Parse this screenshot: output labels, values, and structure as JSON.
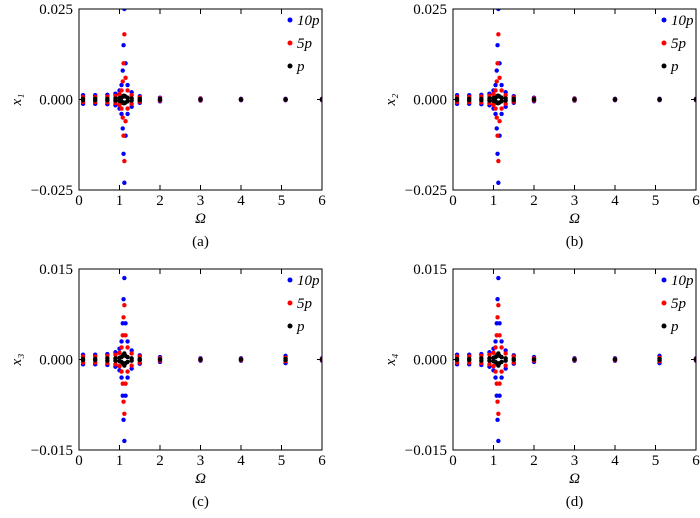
{
  "chart_data": [
    {
      "type": "scatter",
      "ylabel": "x₁",
      "xlabel": "Ω",
      "caption": "(a)",
      "x": [
        0.1,
        0.1,
        0.4,
        0.4,
        0.7,
        0.7,
        0.9,
        0.9,
        1.0,
        1.0,
        1.05,
        1.05,
        1.08,
        1.08,
        1.1,
        1.1,
        1.12,
        1.12,
        1.15,
        1.15,
        1.2,
        1.2,
        1.3,
        1.3,
        1.5,
        1.5,
        2,
        2,
        3,
        3,
        4,
        4,
        5.1,
        5.1,
        6,
        6
      ],
      "xlim": [
        0,
        6
      ],
      "xticks": [
        0,
        1,
        2,
        3,
        4,
        5,
        6
      ],
      "ylim": [
        -0.025,
        0.025
      ],
      "yticks": [
        {
          "value": -0.025,
          "label": "−0.025"
        },
        {
          "value": 0,
          "label": "0.000"
        },
        {
          "value": 0.025,
          "label": "0.025"
        }
      ],
      "series": [
        {
          "name": "10p",
          "color": "#0000ff",
          "values": [
            0.0012,
            -0.0012,
            0.0012,
            -0.0012,
            0.0013,
            -0.0013,
            0.0016,
            -0.0016,
            0.0025,
            -0.0025,
            0.004,
            -0.004,
            0.008,
            -0.008,
            0.015,
            -0.015,
            0.025,
            -0.023,
            0.01,
            -0.01,
            0.004,
            -0.004,
            0.002,
            -0.002,
            0.0009,
            -0.0009,
            0.0005,
            -0.0005,
            0.0003,
            -0.0003,
            0.0002,
            -0.0002,
            0.0002,
            -0.0002,
            0.0002,
            -0.0002
          ]
        },
        {
          "name": "5p",
          "color": "#ff0000",
          "values": [
            0.0007,
            -0.0007,
            0.0007,
            -0.0007,
            0.0008,
            -0.0008,
            0.001,
            -0.001,
            0.0015,
            -0.0015,
            0.0025,
            -0.0025,
            0.005,
            -0.005,
            0.01,
            -0.01,
            0.018,
            -0.017,
            0.006,
            -0.006,
            0.0025,
            -0.0025,
            0.0012,
            -0.0012,
            0.0006,
            -0.0006,
            0.0003,
            -0.0003,
            0.0002,
            -0.0002,
            0.0001,
            -0.0001,
            0.0001,
            -0.0001,
            0.0001,
            -0.0001
          ]
        },
        {
          "name": "p",
          "color": "#000000",
          "values": [
            0.0002,
            -0.0002,
            0.0002,
            -0.0002,
            0.0002,
            -0.0002,
            0.0003,
            -0.0003,
            0.0004,
            -0.0004,
            0.0005,
            -0.0005,
            0.0008,
            -0.0008,
            0.001,
            -0.001,
            0.001,
            -0.001,
            0.0008,
            -0.0008,
            0.0005,
            -0.0005,
            0.0003,
            -0.0003,
            0.0002,
            -0.0002,
            0.0001,
            -0.0001,
            0,
            0,
            0,
            0,
            0,
            0,
            0,
            0
          ]
        }
      ]
    },
    {
      "type": "scatter",
      "ylabel": "x₂",
      "xlabel": "Ω",
      "caption": "(b)",
      "x": [
        0.1,
        0.1,
        0.4,
        0.4,
        0.7,
        0.7,
        0.9,
        0.9,
        1.0,
        1.0,
        1.05,
        1.05,
        1.08,
        1.08,
        1.1,
        1.1,
        1.12,
        1.12,
        1.15,
        1.15,
        1.2,
        1.2,
        1.3,
        1.3,
        1.5,
        1.5,
        2,
        2,
        3,
        3,
        4,
        4,
        5.1,
        5.1,
        6,
        6
      ],
      "xlim": [
        0,
        6
      ],
      "xticks": [
        0,
        1,
        2,
        3,
        4,
        5,
        6
      ],
      "ylim": [
        -0.025,
        0.025
      ],
      "yticks": [
        {
          "value": -0.025,
          "label": "−0.025"
        },
        {
          "value": 0,
          "label": "0.000"
        },
        {
          "value": 0.025,
          "label": "0.025"
        }
      ],
      "series": [
        {
          "name": "10p",
          "color": "#0000ff",
          "values": [
            0.0012,
            -0.0012,
            0.0012,
            -0.0012,
            0.0013,
            -0.0013,
            0.0016,
            -0.0016,
            0.0025,
            -0.0025,
            0.004,
            -0.004,
            0.008,
            -0.008,
            0.015,
            -0.015,
            0.025,
            -0.023,
            0.01,
            -0.01,
            0.004,
            -0.004,
            0.002,
            -0.002,
            0.0009,
            -0.0009,
            0.0005,
            -0.0005,
            0.0003,
            -0.0003,
            0.0002,
            -0.0002,
            0.0002,
            -0.0002,
            0.0002,
            -0.0002
          ]
        },
        {
          "name": "5p",
          "color": "#ff0000",
          "values": [
            0.0007,
            -0.0007,
            0.0007,
            -0.0007,
            0.0008,
            -0.0008,
            0.001,
            -0.001,
            0.0015,
            -0.0015,
            0.0025,
            -0.0025,
            0.005,
            -0.005,
            0.01,
            -0.01,
            0.018,
            -0.017,
            0.006,
            -0.006,
            0.0025,
            -0.0025,
            0.0012,
            -0.0012,
            0.0006,
            -0.0006,
            0.0003,
            -0.0003,
            0.0002,
            -0.0002,
            0.0001,
            -0.0001,
            0.0001,
            -0.0001,
            0.0001,
            -0.0001
          ]
        },
        {
          "name": "p",
          "color": "#000000",
          "values": [
            0.0002,
            -0.0002,
            0.0002,
            -0.0002,
            0.0002,
            -0.0002,
            0.0003,
            -0.0003,
            0.0004,
            -0.0004,
            0.0005,
            -0.0005,
            0.0008,
            -0.0008,
            0.001,
            -0.001,
            0.001,
            -0.001,
            0.0008,
            -0.0008,
            0.0005,
            -0.0005,
            0.0003,
            -0.0003,
            0.0002,
            -0.0002,
            0.0001,
            -0.0001,
            0,
            0,
            0,
            0,
            0,
            0,
            0,
            0
          ]
        }
      ]
    },
    {
      "type": "scatter",
      "ylabel": "x₃",
      "xlabel": "Ω",
      "caption": "(c)",
      "x": [
        0.1,
        0.1,
        0.4,
        0.4,
        0.7,
        0.7,
        0.9,
        0.9,
        1.0,
        1.0,
        1.05,
        1.05,
        1.08,
        1.08,
        1.1,
        1.1,
        1.12,
        1.12,
        1.15,
        1.15,
        1.2,
        1.2,
        1.3,
        1.3,
        1.5,
        1.5,
        2,
        2,
        3,
        3,
        4,
        4,
        5.1,
        5.1,
        6,
        6
      ],
      "xlim": [
        0,
        6
      ],
      "xticks": [
        0,
        1,
        2,
        3,
        4,
        5,
        6
      ],
      "ylim": [
        -0.015,
        0.015
      ],
      "yticks": [
        {
          "value": -0.015,
          "label": "−0.015"
        },
        {
          "value": 0,
          "label": "0.000"
        },
        {
          "value": 0.015,
          "label": "0.015"
        }
      ],
      "series": [
        {
          "name": "10p",
          "color": "#0000ff",
          "values": [
            0.0008,
            -0.0008,
            0.0008,
            -0.0008,
            0.0009,
            -0.0009,
            0.0012,
            -0.0012,
            0.0018,
            -0.0018,
            0.003,
            -0.003,
            0.006,
            -0.006,
            0.01,
            -0.01,
            0.0135,
            -0.0135,
            0.006,
            -0.006,
            0.003,
            -0.003,
            0.0015,
            -0.0015,
            0.0007,
            -0.0007,
            0.0004,
            -0.0004,
            0.0002,
            -0.0002,
            0.0002,
            -0.0002,
            0.0006,
            -0.0006,
            0.0002,
            -0.0002
          ]
        },
        {
          "name": "5p",
          "color": "#ff0000",
          "values": [
            0.0005,
            -0.0005,
            0.0005,
            -0.0005,
            0.0006,
            -0.0006,
            0.0008,
            -0.0008,
            0.0011,
            -0.0011,
            0.002,
            -0.002,
            0.004,
            -0.004,
            0.007,
            -0.007,
            0.009,
            -0.009,
            0.004,
            -0.004,
            0.002,
            -0.002,
            0.001,
            -0.001,
            0.0005,
            -0.0005,
            0.0002,
            -0.0002,
            0.0001,
            -0.0001,
            0.0001,
            -0.0001,
            0.0003,
            -0.0003,
            0.0001,
            -0.0001
          ]
        },
        {
          "name": "p",
          "color": "#000000",
          "values": [
            0.0001,
            -0.0001,
            0.0001,
            -0.0001,
            0.0002,
            -0.0002,
            0.0002,
            -0.0002,
            0.0003,
            -0.0003,
            0.0004,
            -0.0004,
            0.0006,
            -0.0006,
            0.0008,
            -0.0008,
            0.001,
            -0.001,
            0.0006,
            -0.0006,
            0.0004,
            -0.0004,
            0.0002,
            -0.0002,
            0.0001,
            -0.0001,
            0,
            0,
            0,
            0,
            0,
            0,
            0.0001,
            -0.0001,
            0,
            0
          ]
        }
      ]
    },
    {
      "type": "scatter",
      "ylabel": "x₄",
      "xlabel": "Ω",
      "caption": "(d)",
      "x": [
        0.1,
        0.1,
        0.4,
        0.4,
        0.7,
        0.7,
        0.9,
        0.9,
        1.0,
        1.0,
        1.05,
        1.05,
        1.08,
        1.08,
        1.1,
        1.1,
        1.12,
        1.12,
        1.15,
        1.15,
        1.2,
        1.2,
        1.3,
        1.3,
        1.5,
        1.5,
        2,
        2,
        3,
        3,
        4,
        4,
        5.1,
        5.1,
        6,
        6
      ],
      "xlim": [
        0,
        6
      ],
      "xticks": [
        0,
        1,
        2,
        3,
        4,
        5,
        6
      ],
      "ylim": [
        -0.015,
        0.015
      ],
      "yticks": [
        {
          "value": -0.015,
          "label": "−0.015"
        },
        {
          "value": 0,
          "label": "0.000"
        },
        {
          "value": 0.015,
          "label": "0.015"
        }
      ],
      "series": [
        {
          "name": "10p",
          "color": "#0000ff",
          "values": [
            0.0008,
            -0.0008,
            0.0008,
            -0.0008,
            0.0009,
            -0.0009,
            0.0012,
            -0.0012,
            0.0018,
            -0.0018,
            0.003,
            -0.003,
            0.006,
            -0.006,
            0.01,
            -0.01,
            0.0135,
            -0.0135,
            0.006,
            -0.006,
            0.003,
            -0.003,
            0.0015,
            -0.0015,
            0.0007,
            -0.0007,
            0.0004,
            -0.0004,
            0.0002,
            -0.0002,
            0.0002,
            -0.0002,
            0.0006,
            -0.0006,
            0.0002,
            -0.0002
          ]
        },
        {
          "name": "5p",
          "color": "#ff0000",
          "values": [
            0.0005,
            -0.0005,
            0.0005,
            -0.0005,
            0.0006,
            -0.0006,
            0.0008,
            -0.0008,
            0.0011,
            -0.0011,
            0.002,
            -0.002,
            0.004,
            -0.004,
            0.007,
            -0.007,
            0.009,
            -0.009,
            0.004,
            -0.004,
            0.002,
            -0.002,
            0.001,
            -0.001,
            0.0005,
            -0.0005,
            0.0002,
            -0.0002,
            0.0001,
            -0.0001,
            0.0001,
            -0.0001,
            0.0003,
            -0.0003,
            0.0001,
            -0.0001
          ]
        },
        {
          "name": "p",
          "color": "#000000",
          "values": [
            0.0001,
            -0.0001,
            0.0001,
            -0.0001,
            0.0002,
            -0.0002,
            0.0002,
            -0.0002,
            0.0003,
            -0.0003,
            0.0004,
            -0.0004,
            0.0006,
            -0.0006,
            0.0008,
            -0.0008,
            0.001,
            -0.001,
            0.0006,
            -0.0006,
            0.0004,
            -0.0004,
            0.0002,
            -0.0002,
            0.0001,
            -0.0001,
            0,
            0,
            0,
            0,
            0,
            0,
            0.0001,
            -0.0001,
            0,
            0
          ]
        }
      ]
    }
  ]
}
